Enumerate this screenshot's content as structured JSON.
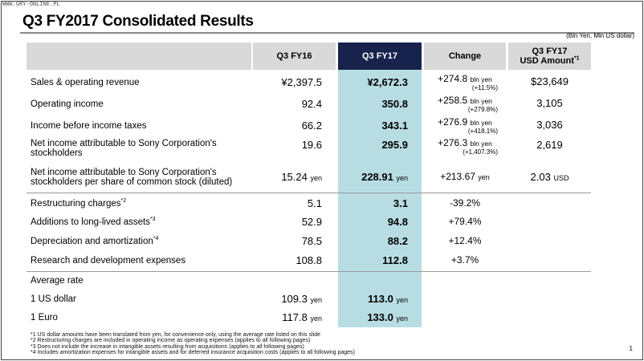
{
  "watermark": "WWW.GRY-ONLINE.PL",
  "title": "Q3 FY2017  Consolidated Results",
  "unit_note": "(Bln Yen, Mln US dollar)",
  "headers": {
    "fy16": "Q3 FY16",
    "fy17": "Q3 FY17",
    "change": "Change",
    "usd_line1": "Q3 FY17",
    "usd_line2": "USD Amount",
    "usd_sup": "*1"
  },
  "rows": [
    {
      "label": "Sales & operating revenue",
      "fy16": "¥2,397.5",
      "fy17": "¥2,672.3",
      "change": "+274.8",
      "change_unit": "bln yen",
      "change_pct": "(+11.5%)",
      "usd": "$23,649"
    },
    {
      "label": "Operating income",
      "fy16": "92.4",
      "fy17": "350.8",
      "change": "+258.5",
      "change_unit": "bln yen",
      "change_pct": "(+279.8%)",
      "usd": "3,105"
    },
    {
      "label": "Income before income taxes",
      "fy16": "66.2",
      "fy17": "343.1",
      "change": "+276.9",
      "change_unit": "bln yen",
      "change_pct": "(+418.1%)",
      "usd": "3,036"
    },
    {
      "label1": "Net income attributable to Sony Corporation's",
      "label2": "stockholders",
      "fy16": "19.6",
      "fy17": "295.9",
      "change": "+276.3",
      "change_unit": "bln yen",
      "change_pct": "(+1,407.3%)",
      "usd": "2,619"
    },
    {
      "label1": "Net income attributable to Sony Corporation's",
      "label2": "stockholders per share of common stock (diluted)",
      "fy16": "15.24",
      "fy16_unit": "yen",
      "fy17": "228.91",
      "fy17_unit": "yen",
      "change": "+213.67",
      "change_unit": "yen",
      "usd": "2.03",
      "usd_unit": "USD"
    }
  ],
  "rows2": [
    {
      "label": "Restructuring charges",
      "sup": "*2",
      "fy16": "5.1",
      "fy17": "3.1",
      "change": "-39.2%"
    },
    {
      "label": "Additions to long-lived assets",
      "sup": "*3",
      "fy16": "52.9",
      "fy17": "94.8",
      "change": "+79.4%"
    },
    {
      "label": "Depreciation and amortization",
      "sup": "*4",
      "fy16": "78.5",
      "fy17": "88.2",
      "change": "+12.4%"
    },
    {
      "label": "Research and development expenses",
      "fy16": "108.8",
      "fy17": "112.8",
      "change": "+3.7%"
    }
  ],
  "rates": {
    "heading": "Average rate",
    "usd_label": "1 US dollar",
    "usd_fy16": "109.3",
    "usd_fy17": "113.0",
    "eur_label": "1 Euro",
    "eur_fy16": "117.8",
    "eur_fy17": "133.0",
    "unit": "yen"
  },
  "footnotes": [
    "*1 US dollar amounts have been translated from yen, for convenience only, using the average rate listed on this slide",
    "*2 Restructuring charges are included in operating income as operating expenses (applies to all following pages)",
    "*3 Does not include the increase in intangible assets resulting from acquisitions (applies to all following pages)",
    "*4 Includes amortization expenses for intangible assets and for deferred insurance acquisition costs (applies to all following pages)"
  ],
  "page_number": "1"
}
